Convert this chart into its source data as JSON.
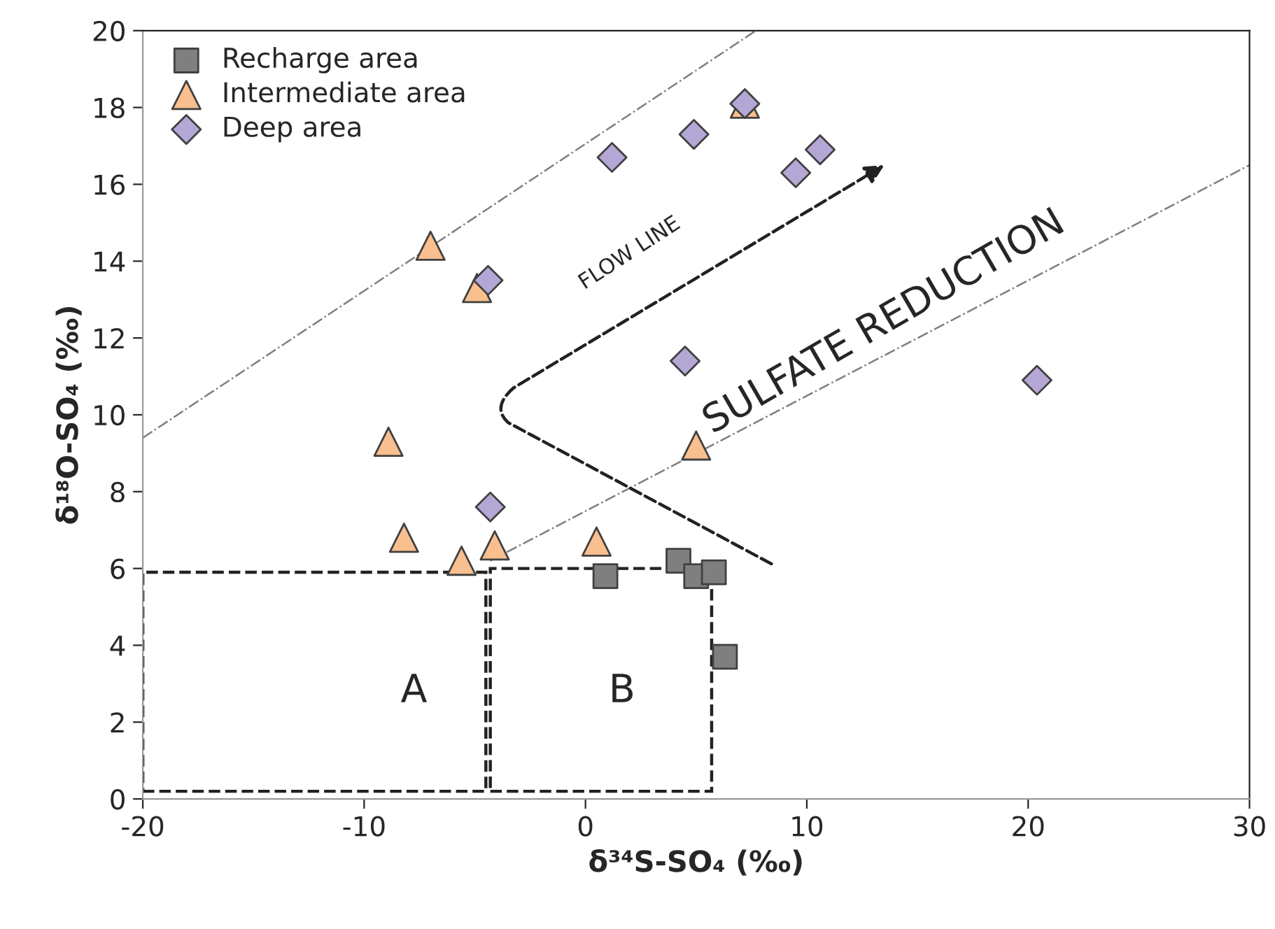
{
  "chart_data": {
    "type": "scatter",
    "xlabel": "δ³⁴S-SO₄ (‰)",
    "ylabel": "δ¹⁸O-SO₄ (‰)",
    "xlim": [
      -20,
      30
    ],
    "xticks": [
      -20,
      -10,
      0,
      10,
      20,
      30
    ],
    "ylim": [
      0,
      20
    ],
    "yticks": [
      0,
      2,
      4,
      6,
      8,
      10,
      12,
      14,
      16,
      18,
      20
    ],
    "grid": false,
    "legend": "top left",
    "series": [
      {
        "name": "Recharge area",
        "color": "#7f7f7f",
        "marker": "square",
        "x": [
          0.9,
          4.2,
          5.0,
          5.8,
          6.3
        ],
        "values": [
          5.8,
          6.2,
          5.8,
          5.9,
          3.7
        ]
      },
      {
        "name": "Intermediate area",
        "color": "#f9bf8f",
        "marker": "triangle",
        "x": [
          -7.0,
          -4.9,
          -8.9,
          -8.2,
          -5.6,
          -4.1,
          0.5,
          5.0,
          7.2
        ],
        "values": [
          14.4,
          13.3,
          9.3,
          6.8,
          6.2,
          6.6,
          6.7,
          9.2,
          18.1
        ]
      },
      {
        "name": "Deep area",
        "color": "#b4a7d6",
        "marker": "diamond",
        "x": [
          7.2,
          1.2,
          4.9,
          9.5,
          10.6,
          -4.4,
          4.5,
          -4.3,
          20.4
        ],
        "values": [
          18.1,
          16.7,
          17.3,
          16.3,
          16.9,
          13.5,
          11.4,
          7.6,
          10.9
        ]
      },
      {
        "type": "line",
        "color": "#7f7f7f",
        "line_style": "dashdot",
        "x": [
          -20,
          7.7
        ],
        "values": [
          9.4,
          20
        ]
      },
      {
        "type": "line",
        "color": "#7f7f7f",
        "line_style": "dashdot",
        "x": [
          -4.3,
          30
        ],
        "values": [
          6.2,
          16.5
        ]
      }
    ],
    "annotations": [
      "A",
      "B",
      "FLOW LINE",
      "SULFATE REDUCTION"
    ]
  }
}
